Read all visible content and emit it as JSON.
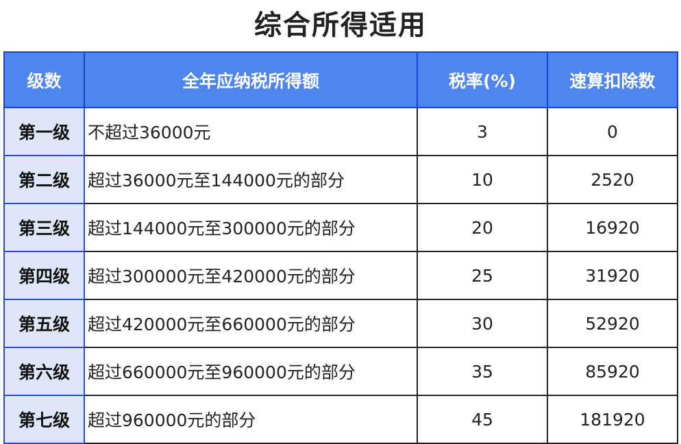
{
  "title": "综合所得适用",
  "headers": [
    "级数",
    "全年应纳税所得额",
    "税率(%)",
    "速算扣除数"
  ],
  "colors": {
    "header_bg": "#4f86ee",
    "level_bg": "#dfe6f8",
    "border_blue": "#1c3fd4"
  },
  "rows": [
    {
      "level": "第一级",
      "range": "不超过36000元",
      "rate": "3",
      "deduction": "0"
    },
    {
      "level": "第二级",
      "range": "超过36000元至144000元的部分",
      "rate": "10",
      "deduction": "2520"
    },
    {
      "level": "第三级",
      "range": "超过144000元至300000元的部分",
      "rate": "20",
      "deduction": "16920"
    },
    {
      "level": "第四级",
      "range": "超过300000元至420000元的部分",
      "rate": "25",
      "deduction": "31920"
    },
    {
      "level": "第五级",
      "range": "超过420000元至660000元的部分",
      "rate": "30",
      "deduction": "52920"
    },
    {
      "level": "第六级",
      "range": "超过660000元至960000元的部分",
      "rate": "35",
      "deduction": "85920"
    },
    {
      "level": "第七级",
      "range": "超过960000元的部分",
      "rate": "45",
      "deduction": "181920"
    }
  ]
}
